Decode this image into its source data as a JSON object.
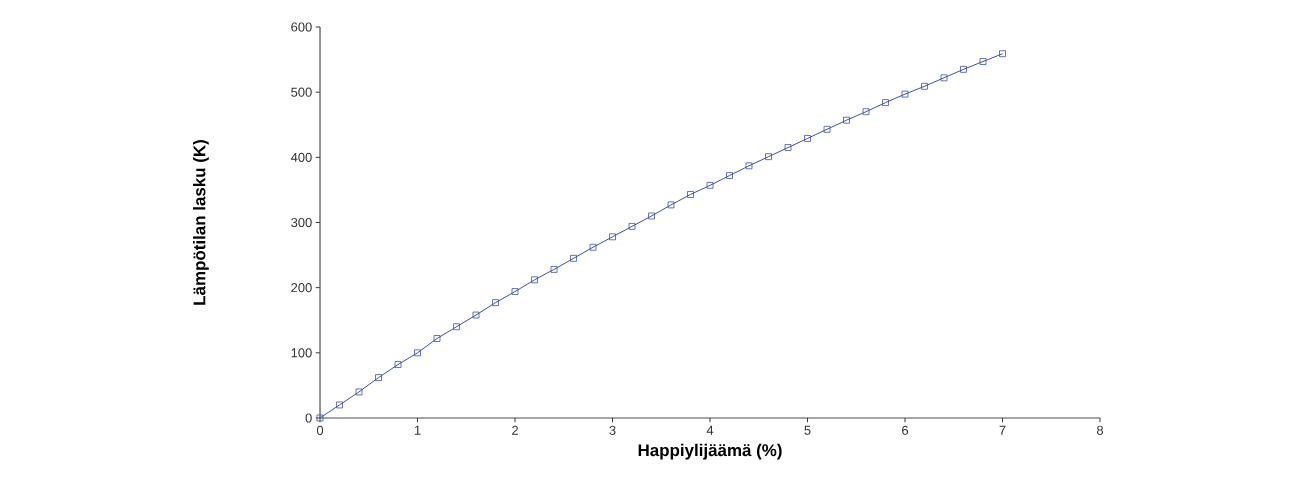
{
  "chart_data": {
    "type": "line",
    "xlabel": "Happiylijäämä (%)",
    "ylabel": "Lämpötilan lasku (K)",
    "x": [
      0,
      0.2,
      0.4,
      0.6,
      0.8,
      1,
      1.2,
      1.4,
      1.6,
      1.8,
      2,
      2.2,
      2.4,
      2.6,
      2.8,
      3,
      3.2,
      3.4,
      3.6,
      3.8,
      4,
      4.2,
      4.4,
      4.6,
      4.8,
      5,
      5.2,
      5.4,
      5.6,
      5.8,
      6,
      6.2,
      6.4,
      6.6,
      6.8,
      7
    ],
    "values": [
      0,
      20,
      40,
      62,
      82,
      100,
      122,
      140,
      158,
      177,
      194,
      212,
      228,
      245,
      262,
      278,
      294,
      310,
      327,
      343,
      357,
      372,
      387,
      401,
      415,
      429,
      443,
      457,
      470,
      484,
      497,
      509,
      522,
      535,
      547,
      559
    ],
    "color": "#4050a8",
    "marker": "square",
    "line_style": "solid",
    "grid": false,
    "xlim": [
      0,
      8
    ],
    "xticks": [
      0,
      1,
      2,
      3,
      4,
      5,
      6,
      7,
      8
    ],
    "ylim": [
      0,
      600
    ],
    "yticks": [
      0,
      100,
      200,
      300,
      400,
      500,
      600
    ]
  }
}
